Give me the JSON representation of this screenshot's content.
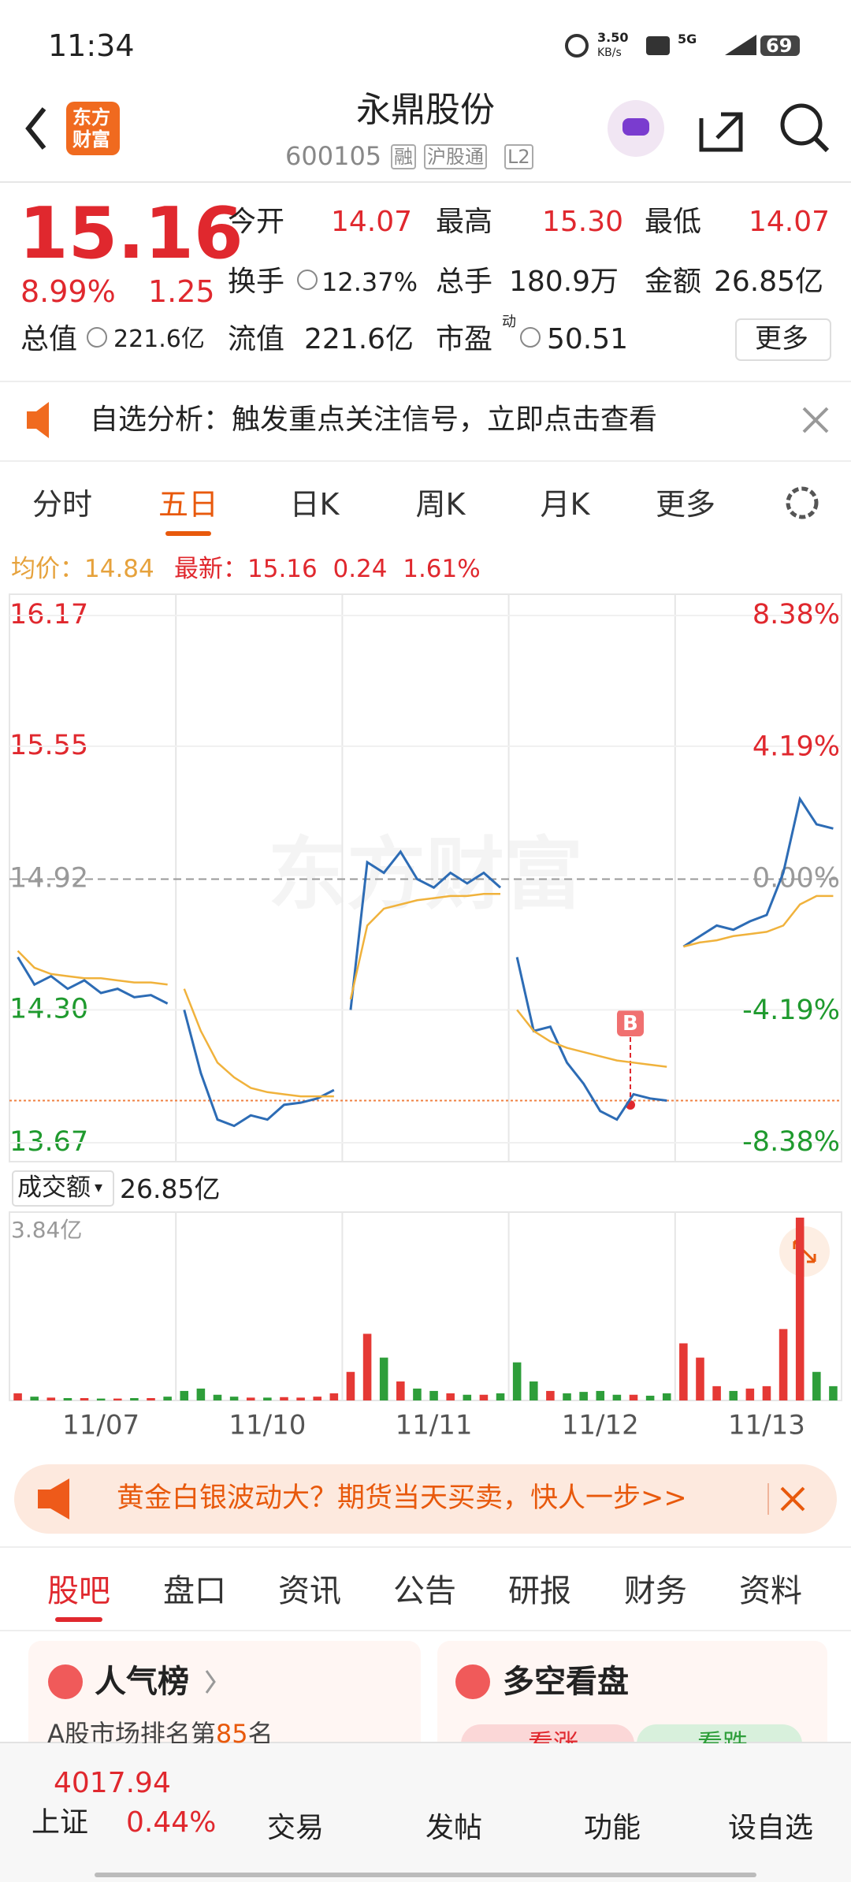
{
  "status_bar": {
    "time": "11:34",
    "speed": "3.50",
    "speed_unit": "KB/s",
    "network": "5G",
    "battery": "69"
  },
  "header": {
    "logo_lines": [
      "东方",
      "财富"
    ],
    "title": "永鼎股份",
    "code": "600105",
    "badges": [
      "融",
      "沪股通",
      "L2"
    ]
  },
  "quote": {
    "price": "15.16",
    "change_pct": "8.99%",
    "change": "1.25",
    "fields": [
      {
        "label": "今开",
        "value": "14.07"
      },
      {
        "label": "最高",
        "value": "15.30"
      },
      {
        "label": "最低",
        "value": "14.07"
      },
      {
        "label": "换手",
        "value": "12.37%"
      },
      {
        "label": "总手",
        "value": "180.9万"
      },
      {
        "label": "金额",
        "value": "26.85亿"
      },
      {
        "label": "总值",
        "value": "221.6亿"
      },
      {
        "label": "流值",
        "value": "221.6亿"
      },
      {
        "label": "市盈",
        "sup": "动",
        "value": "50.51"
      }
    ],
    "more": "更多"
  },
  "notice": "自选分析：触发重点关注信号，立即点击查看",
  "chart_tabs": {
    "items": [
      "分时",
      "五日",
      "日K",
      "周K",
      "月K",
      "更多"
    ],
    "active": 1
  },
  "legend": {
    "avg_label": "均价：",
    "avg": "14.84",
    "last_label": "最新：",
    "last": "15.16",
    "change": "0.24",
    "change_pct": "1.61%"
  },
  "watermark": "东方财富",
  "signal": "B",
  "volume_header": {
    "label": "成交额",
    "total": "26.85亿"
  },
  "chart_data": [
    {
      "type": "line",
      "ylim": [
        13.67,
        16.17
      ],
      "yticks": [
        16.17,
        15.55,
        14.92,
        {
          "value": 14.3,
          "label": "14.30"
        },
        13.67
      ],
      "y2lim": [
        -8.38,
        8.38
      ],
      "y2ticks": [
        {
          "value": 8.38,
          "label": "8.38%"
        },
        {
          "value": 4.19,
          "label": "4.19%"
        },
        {
          "value": 0,
          "label": "0.00%"
        },
        {
          "value": -4.19,
          "label": "-4.19%"
        },
        {
          "value": -8.38,
          "label": "-8.38%"
        }
      ],
      "reference_line": 13.87,
      "series": [
        {
          "color": "#2d6cb5",
          "values": [
            14.55,
            14.42,
            14.46,
            14.4,
            14.44,
            14.38,
            14.4,
            14.36,
            14.37,
            14.33,
            14.3,
            14.0,
            13.78,
            13.75,
            13.8,
            13.78,
            13.85,
            13.86,
            13.88,
            13.92,
            14.3,
            15.0,
            14.95,
            15.05,
            14.92,
            14.88,
            14.95,
            14.9,
            14.95,
            14.88,
            14.55,
            14.2,
            14.22,
            14.05,
            13.95,
            13.82,
            13.78,
            13.9,
            13.88,
            13.87,
            14.6,
            14.65,
            14.7,
            14.68,
            14.72,
            14.75,
            14.95,
            15.3,
            15.18,
            15.16
          ]
        },
        {
          "color": "#f0b23c",
          "values": [
            14.58,
            14.5,
            14.47,
            14.46,
            14.45,
            14.45,
            14.44,
            14.43,
            14.43,
            14.42,
            14.4,
            14.2,
            14.05,
            13.98,
            13.93,
            13.91,
            13.9,
            13.89,
            13.89,
            13.89,
            14.35,
            14.7,
            14.78,
            14.8,
            14.82,
            14.83,
            14.84,
            14.84,
            14.85,
            14.85,
            14.3,
            14.2,
            14.15,
            14.12,
            14.1,
            14.08,
            14.06,
            14.05,
            14.04,
            14.03,
            14.6,
            14.62,
            14.63,
            14.65,
            14.66,
            14.67,
            14.7,
            14.8,
            14.84,
            14.84
          ]
        }
      ]
    },
    {
      "type": "bar",
      "ylim": [
        0,
        3.84
      ],
      "yticks": [
        {
          "value": 3.84,
          "label": "3.84亿"
        }
      ],
      "up_color": "#e53935",
      "down_color": "#2e9e3a",
      "categories": [
        null,
        null,
        null,
        null,
        null,
        "11/07",
        null,
        null,
        null,
        null,
        null,
        null,
        null,
        null,
        null,
        "11/10",
        null,
        null,
        null,
        null,
        null,
        null,
        null,
        null,
        null,
        "11/11",
        null,
        null,
        null,
        null,
        null,
        null,
        null,
        null,
        null,
        "11/12",
        null,
        null,
        null,
        null,
        null,
        null,
        null,
        null,
        null,
        "11/13",
        null,
        null,
        null,
        null
      ],
      "values": [
        0.15,
        0.08,
        0.06,
        0.05,
        0.05,
        0.04,
        0.04,
        0.05,
        0.05,
        0.08,
        0.2,
        0.25,
        0.12,
        0.08,
        0.06,
        0.06,
        0.07,
        0.06,
        0.08,
        0.15,
        0.6,
        1.4,
        0.9,
        0.4,
        0.25,
        0.2,
        0.15,
        0.12,
        0.12,
        0.15,
        0.8,
        0.4,
        0.2,
        0.15,
        0.18,
        0.2,
        0.12,
        0.12,
        0.1,
        0.15,
        1.2,
        0.9,
        0.3,
        0.2,
        0.25,
        0.3,
        1.5,
        3.84,
        0.6,
        0.3
      ]
    }
  ],
  "ad": "黄金白银波动大？期货当天买卖，快人一步>>",
  "bottom_tabs": {
    "items": [
      "股吧",
      "盘口",
      "资讯",
      "公告",
      "研报",
      "财务",
      "资料"
    ],
    "active": 0
  },
  "cards": [
    {
      "title": "人气榜",
      "text": "A股市场排名第",
      "rank": "85",
      "suffix": "名"
    },
    {
      "title": "多空看盘",
      "buttons": [
        "看涨",
        "看跌"
      ]
    }
  ],
  "nav": {
    "index_value": "4017.94",
    "index_name": "上证",
    "index_change": "0.44%",
    "items": [
      "交易",
      "发帖",
      "功能",
      "设自选"
    ]
  }
}
